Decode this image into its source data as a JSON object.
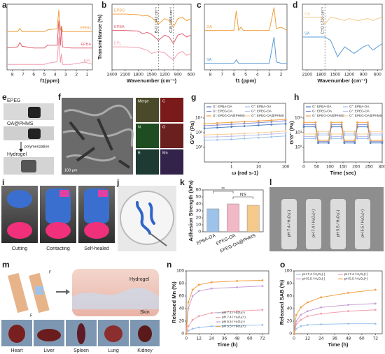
{
  "figure": {
    "panel_letters": [
      "a",
      "b",
      "c",
      "d",
      "e",
      "f",
      "g",
      "h",
      "i",
      "j",
      "k",
      "l",
      "m",
      "n",
      "o"
    ],
    "e": [
      "EPEG",
      "OA@PHMS",
      "polymerization",
      "Hydrogel"
    ],
    "f": {
      "scale": "100 μm",
      "maps": [
        "Merge",
        "C",
        "N",
        "O",
        "B",
        "Mn"
      ]
    },
    "i": [
      "Cutting",
      "Contacting",
      "Self-healed"
    ],
    "l": [
      "pH 7.4 / H₂O₂(-)",
      "pH 7.4 / H₂O₂(+)",
      "pH 5.5 / H₂O₂(-)",
      "pH 5.5 / H₂O₂(+)"
    ],
    "m": {
      "diagram": [
        "Hydrogel",
        "Skin",
        "F",
        "F"
      ],
      "organs": [
        "Heart",
        "Liver",
        "Spleen",
        "Lung",
        "Kidney"
      ]
    }
  },
  "chart_data": [
    {
      "type": "line",
      "xlabel": "f1(ppm)",
      "xlim": [
        8.5,
        0.5
      ],
      "ylim": [
        0,
        12
      ],
      "xticks": [
        8,
        7,
        6,
        5,
        4,
        3,
        2,
        1
      ],
      "x": [
        8.5,
        7.5,
        7.3,
        7.1,
        6,
        5,
        4.7,
        3.8,
        3.65,
        3.5,
        3.4,
        3.3,
        2.5,
        1.2,
        0.5
      ],
      "series": [
        {
          "name": "EPBG",
          "color": "#f0a040",
          "values": [
            7,
            7,
            7.6,
            7,
            7,
            7,
            7.3,
            7.5,
            11,
            7.2,
            8,
            7,
            7,
            7,
            7
          ]
        },
        {
          "name": "EPBA",
          "color": "#e06070",
          "values": [
            4,
            4.2,
            5,
            4.3,
            4,
            4,
            4.5,
            4.5,
            9,
            4.4,
            8,
            4.2,
            4,
            4,
            4
          ]
        },
        {
          "name": "EPL",
          "color": "#f2a0b0",
          "values": [
            1,
            1,
            1,
            1,
            1,
            1,
            1.2,
            1.5,
            6,
            1.3,
            3,
            1,
            1,
            1.4,
            1
          ]
        }
      ]
    },
    {
      "type": "line",
      "xlabel": "Wavenumber (cm⁻¹)",
      "ylabel": "Transmittance (%)",
      "xlim": [
        2400,
        600
      ],
      "ylim": [
        0,
        10
      ],
      "xticks": [
        2400,
        2100,
        1800,
        1500,
        1200,
        900,
        600
      ],
      "x": [
        2400,
        2100,
        1800,
        1700,
        1600,
        1500,
        1342,
        1200,
        1100,
        1005,
        900,
        800,
        700,
        600
      ],
      "annotations": [
        {
          "x": 1342,
          "label": "B-O 1342 cm⁻¹"
        },
        {
          "x": 1005,
          "label": "C-B 1005 cm⁻¹"
        }
      ],
      "series": [
        {
          "name": "EPBG",
          "color": "#f0a040",
          "values": [
            8.5,
            8.5,
            8.4,
            8.2,
            8.3,
            8,
            7,
            7.8,
            7.5,
            6.5,
            7.8,
            8,
            7.5,
            7.8
          ]
        },
        {
          "name": "EPBA",
          "color": "#e06070",
          "values": [
            6,
            6,
            5.9,
            5.5,
            5.7,
            5.4,
            4.5,
            5.3,
            5,
            4,
            5.3,
            5.5,
            5,
            5.3
          ]
        },
        {
          "name": "EPL",
          "color": "#f2a0b0",
          "values": [
            3.5,
            3.5,
            3.4,
            3.2,
            3,
            2.5,
            2.8,
            2.6,
            2,
            1.5,
            2.5,
            2.8,
            2.2,
            2.5
          ]
        }
      ]
    },
    {
      "type": "line",
      "xlabel": "f1 (ppm)",
      "xlim": [
        8.5,
        1.5
      ],
      "ylim": [
        0,
        10
      ],
      "xticks": [
        8,
        7,
        6,
        5,
        4,
        3,
        2
      ],
      "x": [
        8.5,
        7,
        6,
        5.8,
        5.6,
        5.4,
        5.2,
        4.5,
        4,
        3.5,
        3,
        2.6,
        2.4,
        2,
        1.5
      ],
      "series": [
        {
          "name": "OA",
          "color": "#f0a040",
          "values": [
            6,
            6,
            6,
            9,
            6,
            6.5,
            6,
            6,
            6,
            6,
            6,
            9.5,
            6.3,
            6.5,
            6
          ]
        },
        {
          "name": "SA",
          "color": "#5b9bd5",
          "values": [
            1,
            1,
            1,
            1.5,
            1,
            1,
            1,
            1,
            1,
            1,
            1,
            5,
            1.2,
            1,
            1
          ]
        }
      ]
    },
    {
      "type": "line",
      "xlabel": "Wavenumber (cm⁻¹)",
      "xlim": [
        2200,
        500
      ],
      "ylim": [
        0,
        10
      ],
      "xticks": [
        2100,
        1800,
        1500,
        1200,
        900,
        600
      ],
      "x": [
        2200,
        2000,
        1800,
        1720,
        1600,
        1450,
        1300,
        1200,
        1100,
        1000,
        900,
        800,
        700,
        600,
        500
      ],
      "annotations": [
        {
          "x": 1720,
          "label": "C=O 1720 cm⁻¹"
        }
      ],
      "series": [
        {
          "name": "OA",
          "color": "#f5c98a",
          "values": [
            8,
            8,
            8,
            7,
            8,
            7.8,
            7.5,
            7.8,
            7.6,
            7.5,
            7.7,
            7.8,
            7.5,
            7.8,
            8
          ]
        },
        {
          "name": "SA",
          "color": "#5b9bd5",
          "values": [
            5,
            5,
            5,
            5,
            4.5,
            2,
            3.5,
            3,
            2.5,
            3,
            3.5,
            3.8,
            3,
            3.5,
            4
          ]
        }
      ]
    },
    {
      "type": "line",
      "xlabel": "ω (rad s-1)",
      "ylabel": "G'G'' (Pa)",
      "xscale": "log",
      "yscale": "log",
      "xlim": [
        0.1,
        100
      ],
      "ylim": [
        10,
        100000
      ],
      "xticks": [
        1,
        10,
        100
      ],
      "yticks": [
        {
          "value": 100,
          "label": "10²"
        },
        {
          "value": 1000,
          "label": "10³"
        },
        {
          "value": 10000,
          "label": "10⁴"
        }
      ],
      "legend": "upper left",
      "x": [
        0.1,
        0.3,
        1,
        3,
        10,
        30,
        100
      ],
      "series": [
        {
          "name": "G': EPBA-OA",
          "color": "#4a7fc1",
          "values": [
            2000,
            2200,
            2500,
            2800,
            3200,
            3600,
            4000
          ]
        },
        {
          "name": "G'': EPBA-OA",
          "color": "#9ec3ea",
          "values": [
            300,
            320,
            350,
            400,
            450,
            520,
            600
          ]
        },
        {
          "name": "G': EPEG-OA",
          "color": "#8a8fd0",
          "values": [
            3000,
            3300,
            3700,
            4200,
            4800,
            5500,
            6500
          ]
        },
        {
          "name": "G'': EPEG-OA",
          "color": "#c0c4ea",
          "values": [
            500,
            520,
            560,
            620,
            700,
            800,
            950
          ]
        },
        {
          "name": "G': EPEG-OA@PHMS",
          "color": "#f0a040",
          "values": [
            4000,
            4500,
            5000,
            5600,
            6300,
            7000,
            8000
          ]
        },
        {
          "name": "G'': EPEG-OA@PHMS",
          "color": "#f7cf9a",
          "values": [
            700,
            750,
            800,
            880,
            980,
            1100,
            1300
          ]
        }
      ]
    },
    {
      "type": "line",
      "xlabel": "Time (sec)",
      "ylabel": "G'G'' (Pa)",
      "yscale": "log",
      "xlim": [
        0,
        300
      ],
      "ylim": [
        10,
        100000
      ],
      "xticks": [
        0,
        50,
        100,
        150,
        200,
        250,
        300
      ],
      "yticks": [
        {
          "value": 100,
          "label": "10²"
        },
        {
          "value": 1000,
          "label": "10³"
        },
        {
          "value": 10000,
          "label": "10⁴"
        }
      ],
      "legend": "upper left",
      "x": [
        0,
        45,
        55,
        95,
        105,
        145,
        155,
        195,
        205,
        245,
        255,
        300
      ],
      "series": [
        {
          "name": "G': EPBA-OA",
          "color": "#4a7fc1",
          "values": [
            2500,
            2500,
            200,
            200,
            2500,
            2500,
            200,
            200,
            2500,
            2500,
            200,
            200
          ]
        },
        {
          "name": "G'': EPBA-OA",
          "color": "#9ec3ea",
          "values": [
            400,
            400,
            700,
            700,
            400,
            400,
            700,
            700,
            400,
            400,
            700,
            700
          ]
        },
        {
          "name": "G': EPEG-OA",
          "color": "#8a8fd0",
          "values": [
            3500,
            3500,
            250,
            250,
            3500,
            3500,
            250,
            250,
            3500,
            3500,
            250,
            250
          ]
        },
        {
          "name": "G'': EPEG-OA",
          "color": "#c0c4ea",
          "values": [
            550,
            550,
            900,
            900,
            550,
            550,
            900,
            900,
            550,
            550,
            900,
            900
          ]
        },
        {
          "name": "G': EPEG-OA@PHMS",
          "color": "#f0a040",
          "values": [
            5000,
            5000,
            300,
            300,
            5000,
            5000,
            300,
            300,
            5000,
            5000,
            300,
            300
          ]
        },
        {
          "name": "G'': EPEG-OA@PHMS",
          "color": "#f7cf9a",
          "values": [
            800,
            800,
            1200,
            1200,
            800,
            800,
            1200,
            1200,
            800,
            800,
            1200,
            1200
          ]
        }
      ]
    },
    {
      "type": "bar",
      "ylabel": "Adhesion Strength (kPa)",
      "ylim": [
        0,
        60
      ],
      "yticks": [
        0,
        10,
        20,
        30,
        40,
        50,
        60
      ],
      "categories": [
        "EPBA-OA",
        "EPEG-OA",
        "EPEG-OA@PHMS"
      ],
      "values": [
        33,
        40,
        38
      ],
      "colors": [
        "#9ec3ea",
        "#f2b8c6",
        "#f5c98a"
      ],
      "significance": [
        "**",
        "NS"
      ]
    },
    {
      "type": "line",
      "xlabel": "Time (h)",
      "ylabel": "Released Mn (%)",
      "xlim": [
        0,
        78
      ],
      "ylim": [
        0,
        100
      ],
      "xticks": [
        0,
        12,
        24,
        36,
        48,
        60,
        72
      ],
      "yticks": [
        0,
        20,
        40,
        60,
        80,
        100
      ],
      "legend": "lower right",
      "x": [
        0,
        2,
        6,
        12,
        24,
        48,
        72
      ],
      "series": [
        {
          "name": "pH 7.4 / H₂O₂(-)",
          "color": "#9ec3ea",
          "values": [
            0,
            5,
            8,
            10,
            12,
            13,
            14
          ]
        },
        {
          "name": "pH 7.4 / H₂O₂(+)",
          "color": "#f2a0b0",
          "values": [
            0,
            12,
            22,
            28,
            33,
            36,
            38
          ]
        },
        {
          "name": "pH 5.5 / H₂O₂(-)",
          "color": "#c9a0d6",
          "values": [
            0,
            40,
            60,
            68,
            72,
            74,
            76
          ]
        },
        {
          "name": "pH 5.5 / H₂O₂(+)",
          "color": "#f0a040",
          "values": [
            0,
            50,
            70,
            78,
            82,
            84,
            85
          ]
        }
      ]
    },
    {
      "type": "line",
      "xlabel": "Time (h)",
      "ylabel": "Released SAB (%)",
      "xlim": [
        0,
        78
      ],
      "ylim": [
        0,
        100
      ],
      "xticks": [
        0,
        12,
        24,
        36,
        48,
        60,
        72
      ],
      "yticks": [
        0,
        20,
        40,
        60,
        80,
        100
      ],
      "legend": "upper left",
      "x": [
        0,
        2,
        6,
        12,
        24,
        48,
        72
      ],
      "series": [
        {
          "name": "pH 7.4 / H₂O₂(-)",
          "color": "#9ec3ea",
          "values": [
            0,
            8,
            12,
            14,
            15,
            16,
            16
          ]
        },
        {
          "name": "pH 7.4 / H₂O₂(+)",
          "color": "#f2a0b0",
          "values": [
            0,
            15,
            22,
            28,
            32,
            36,
            38
          ]
        },
        {
          "name": "pH 5.5 / H₂O₂(-)",
          "color": "#c9a0d6",
          "values": [
            0,
            20,
            30,
            36,
            42,
            46,
            48
          ]
        },
        {
          "name": "pH 5.5 / H₂O₂(+)",
          "color": "#f0a040",
          "values": [
            0,
            30,
            42,
            50,
            58,
            65,
            70
          ]
        }
      ]
    }
  ]
}
